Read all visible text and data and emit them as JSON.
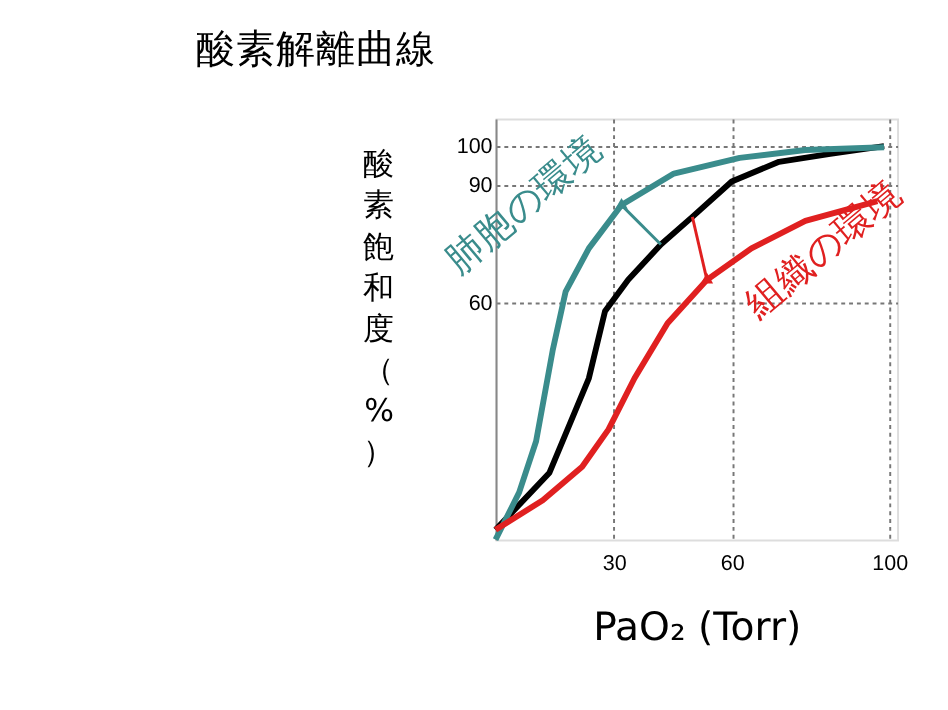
{
  "chart_data": {
    "type": "line",
    "title": "酸素解離曲線",
    "xlabel": "PaO₂ (Torr)",
    "ylabel": "酸素飽和度（%）",
    "xlim": [
      0,
      102
    ],
    "ylim": [
      0,
      107
    ],
    "xticks": [
      30,
      60,
      100
    ],
    "yticks": [
      60,
      90,
      100
    ],
    "grid": true,
    "marker": "none",
    "line_style": "solid",
    "series": [
      {
        "color": "#000000",
        "x": [
          0,
          13.7,
          23.7,
          27.8,
          33.7,
          42,
          50,
          60,
          72,
          85,
          98.7
        ],
        "values": [
          2.5,
          17,
          41,
          58,
          66,
          75,
          82,
          91,
          96,
          98,
          100
        ]
      },
      {
        "name": "肺胞の環境",
        "color": "#3a8c8c",
        "x": [
          0,
          6,
          10.3,
          14.5,
          17.8,
          23.7,
          32,
          45.3,
          62,
          78.7,
          98.7
        ],
        "values": [
          0,
          12,
          25,
          48,
          63,
          74,
          85,
          93,
          97,
          99,
          99.7
        ]
      },
      {
        "name": "組織の環境",
        "color": "#e02020",
        "x": [
          0,
          12,
          22,
          28.7,
          35.3,
          43.7,
          53.7,
          65,
          78.7,
          97
        ],
        "values": [
          2.5,
          10,
          18.5,
          28,
          41,
          55,
          66,
          74,
          81,
          86
        ]
      }
    ]
  }
}
